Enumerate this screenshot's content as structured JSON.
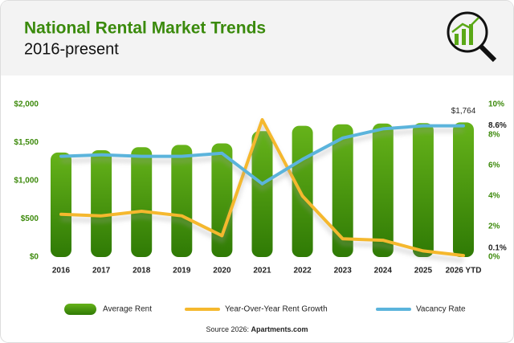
{
  "header": {
    "title": "National Rental Market Trends",
    "subtitle": "2016-present"
  },
  "chart_data": {
    "type": "combo",
    "categories": [
      "2016",
      "2017",
      "2018",
      "2019",
      "2020",
      "2021",
      "2022",
      "2023",
      "2024",
      "2025",
      "2026 YTD"
    ],
    "series": [
      {
        "name": "Average Rent",
        "type": "bar",
        "color": "#4f9a0f",
        "values": [
          1370,
          1400,
          1440,
          1470,
          1490,
          1650,
          1720,
          1740,
          1750,
          1755,
          1764
        ],
        "value_labels": [
          null,
          null,
          null,
          null,
          null,
          null,
          null,
          null,
          null,
          null,
          "$1,764"
        ]
      },
      {
        "name": "Year-Over-Year Rent Growth",
        "type": "line",
        "axis": "y2",
        "color": "#f5b82e",
        "values": [
          2.8,
          2.7,
          3.0,
          2.7,
          1.4,
          9.0,
          4.0,
          1.2,
          1.1,
          0.4,
          0.1
        ],
        "value_labels": [
          null,
          null,
          null,
          null,
          null,
          null,
          null,
          null,
          null,
          null,
          "0.1%"
        ]
      },
      {
        "name": "Vacancy Rate",
        "type": "line",
        "axis": "y2",
        "color": "#5bb4dc",
        "values": [
          6.6,
          6.7,
          6.6,
          6.6,
          6.8,
          4.8,
          6.4,
          7.8,
          8.4,
          8.6,
          8.6
        ],
        "value_labels": [
          null,
          null,
          null,
          null,
          null,
          null,
          null,
          null,
          null,
          null,
          "8.6%"
        ]
      }
    ],
    "ylim": [
      0,
      2000
    ],
    "yticks": [
      {
        "value": 0,
        "label": "$0"
      },
      {
        "value": 500,
        "label": "$500"
      },
      {
        "value": 1000,
        "label": "$1,000"
      },
      {
        "value": 1500,
        "label": "$1,500"
      },
      {
        "value": 2000,
        "label": "$2,000"
      }
    ],
    "y2lim": [
      0,
      10
    ],
    "y2ticks": [
      {
        "value": 0,
        "label": "0%"
      },
      {
        "value": 2,
        "label": "2%"
      },
      {
        "value": 4,
        "label": "4%"
      },
      {
        "value": 6,
        "label": "6%"
      },
      {
        "value": 8,
        "label": "8%"
      },
      {
        "value": 10,
        "label": "10%"
      }
    ],
    "grid": false
  },
  "source": {
    "text": "Source 2026:",
    "site": "Apartments.com"
  }
}
